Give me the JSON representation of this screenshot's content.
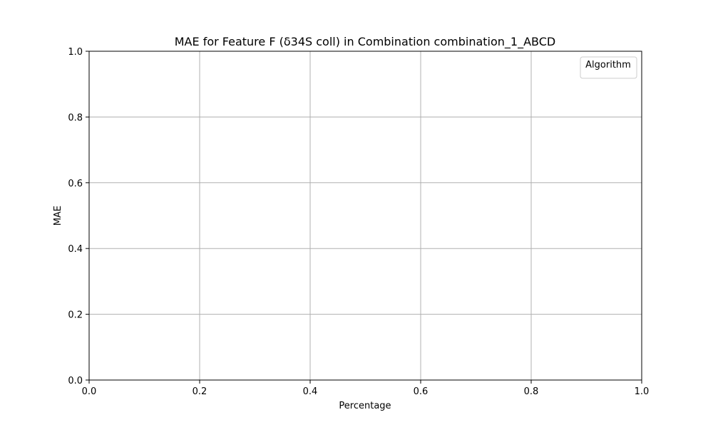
{
  "chart_data": {
    "type": "line",
    "title": "MAE for Feature F (δ34S coll) in Combination combination_1_ABCD",
    "xlabel": "Percentage",
    "ylabel": "MAE",
    "xlim": [
      0.0,
      1.0
    ],
    "ylim": [
      0.0,
      1.0
    ],
    "x_ticks": [
      0.0,
      0.2,
      0.4,
      0.6,
      0.8,
      1.0
    ],
    "y_ticks": [
      0.0,
      0.2,
      0.4,
      0.6,
      0.8,
      1.0
    ],
    "x_tick_labels": [
      "0.0",
      "0.2",
      "0.4",
      "0.6",
      "0.8",
      "1.0"
    ],
    "y_tick_labels": [
      "0.0",
      "0.2",
      "0.4",
      "0.6",
      "0.8",
      "1.0"
    ],
    "grid": true,
    "legend": {
      "title": "Algorithm",
      "location": "top-right",
      "entries": []
    },
    "series": [],
    "colors": {
      "grid": "#b0b0b0",
      "axes": "#000000",
      "legend_border": "#cccccc"
    }
  }
}
